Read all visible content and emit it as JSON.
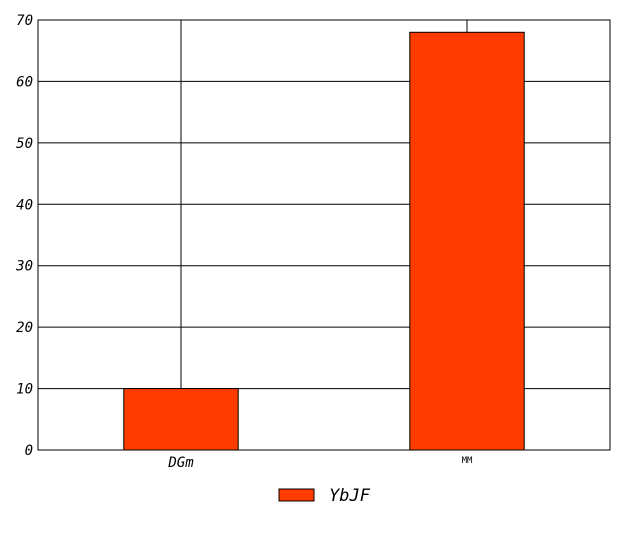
{
  "chart_data": {
    "type": "bar",
    "categories": [
      "DGm",
      "MM"
    ],
    "series": [
      {
        "name": "YbJF",
        "values": [
          10,
          68
        ],
        "color": "#ff3b00"
      }
    ],
    "title": "",
    "xlabel": "",
    "ylabel": "",
    "ylim": [
      0,
      70
    ],
    "yticks": [
      0,
      10,
      20,
      30,
      40,
      50,
      60,
      70
    ],
    "grid": true,
    "legend": {
      "position": "bottom-center",
      "entries": [
        "YbJF"
      ]
    }
  }
}
